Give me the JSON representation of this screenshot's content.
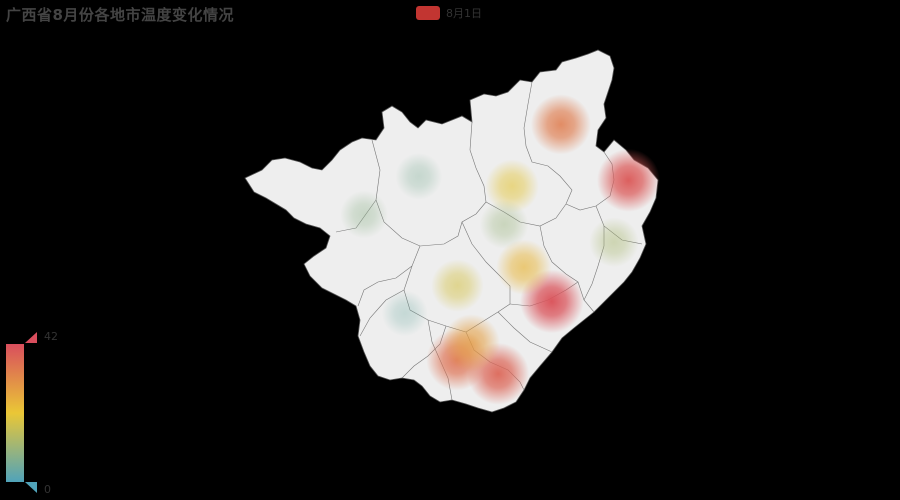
{
  "chart_data": {
    "type": "heatmap",
    "title": "广西省8月份各地市温度变化情况",
    "legend": [
      {
        "name": "8月1日",
        "color": "#c23531"
      }
    ],
    "visual_map": {
      "min": 0,
      "max": 42,
      "colors": [
        "#50a3ba",
        "#eac736",
        "#d94e5d"
      ],
      "placement": "bottom-left"
    },
    "points": [
      {
        "lon": 110.29,
        "lat": 25.27,
        "value": 34
      },
      {
        "lon": 111.55,
        "lat": 24.42,
        "value": 40
      },
      {
        "lon": 110.12,
        "lat": 22.58,
        "value": 41
      },
      {
        "lon": 109.38,
        "lat": 24.33,
        "value": 20
      },
      {
        "lon": 106.62,
        "lat": 23.9,
        "value": 8
      },
      {
        "lon": 107.64,
        "lat": 24.48,
        "value": 6
      },
      {
        "lon": 109.23,
        "lat": 23.75,
        "value": 10
      },
      {
        "lon": 111.28,
        "lat": 23.48,
        "value": 12
      },
      {
        "lon": 109.6,
        "lat": 23.1,
        "value": 24
      },
      {
        "lon": 108.36,
        "lat": 22.82,
        "value": 18
      },
      {
        "lon": 109.12,
        "lat": 21.48,
        "value": 38
      },
      {
        "lon": 108.35,
        "lat": 21.69,
        "value": 36
      },
      {
        "lon": 108.62,
        "lat": 21.95,
        "value": 28
      },
      {
        "lon": 107.38,
        "lat": 22.4,
        "value": 4
      }
    ]
  }
}
